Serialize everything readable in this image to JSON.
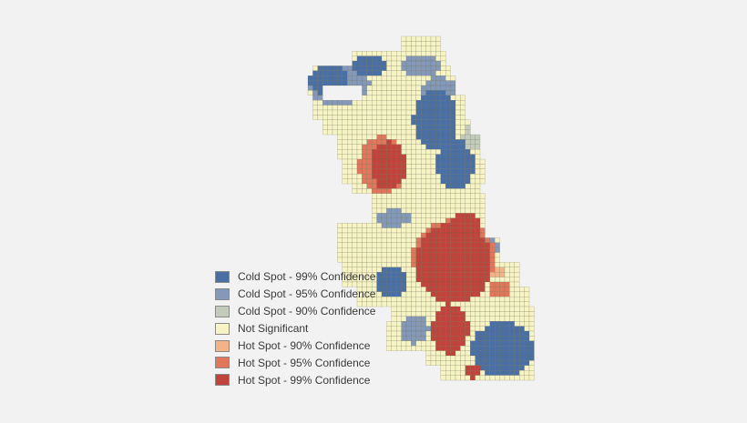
{
  "map": {
    "legend": [
      {
        "key": "cold99",
        "label": "Cold Spot - 99% Confidence",
        "color": "#4a6fa5"
      },
      {
        "key": "cold95",
        "label": "Cold Spot - 95% Confidence",
        "color": "#8499b9"
      },
      {
        "key": "cold90",
        "label": "Cold Spot - 90% Confidence",
        "color": "#c3cbbd"
      },
      {
        "key": "ns",
        "label": "Not Significant",
        "color": "#f6f3c4"
      },
      {
        "key": "hot90",
        "label": "Hot Spot - 90% Confidence",
        "color": "#f3b389"
      },
      {
        "key": "hot95",
        "label": "Hot Spot - 95% Confidence",
        "color": "#e0775c"
      },
      {
        "key": "hot99",
        "label": "Hot Spot - 99% Confidence",
        "color": "#c0433c"
      }
    ],
    "grid_line_color": "#6b6b4e"
  }
}
